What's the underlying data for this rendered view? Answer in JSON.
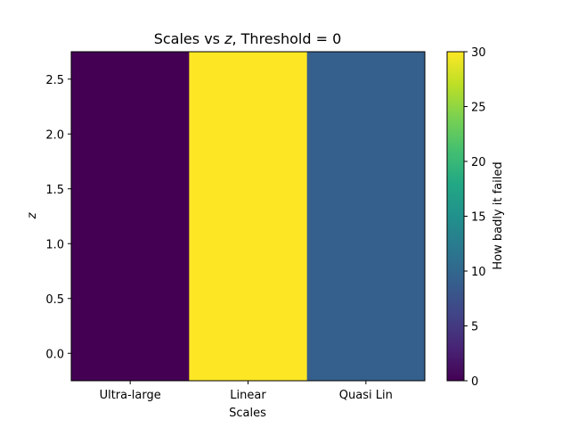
{
  "chart_data": {
    "type": "heatmap",
    "title_prefix": "Scales vs ",
    "title_var": "z",
    "title_suffix": ", Threshold = 0",
    "xlabel": "Scales",
    "ylabel": "z",
    "categories": [
      "Ultra-large",
      "Linear",
      "Quasi Lin"
    ],
    "values": [
      0,
      30,
      9
    ],
    "ylim": [
      -0.25,
      2.75
    ],
    "yticks": [
      "0.0",
      "0.5",
      "1.0",
      "1.5",
      "2.0",
      "2.5"
    ],
    "colorbar": {
      "label": "How badly it failed",
      "range": [
        0,
        30
      ],
      "ticks": [
        "0",
        "5",
        "10",
        "15",
        "20",
        "25",
        "30"
      ],
      "colormap": "viridis"
    },
    "grid": false
  }
}
